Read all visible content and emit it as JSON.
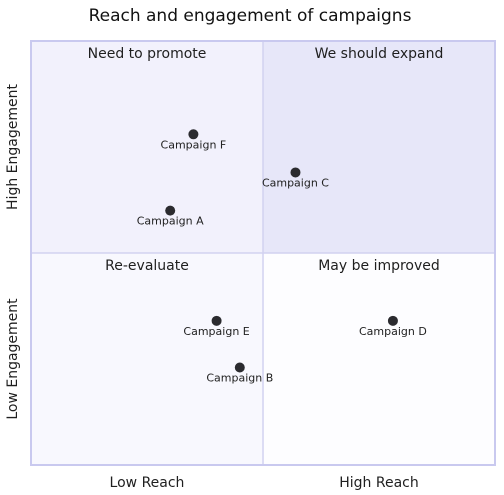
{
  "chart_data": {
    "type": "scatter",
    "chart_subtype": "quadrant",
    "title": "Reach and engagement of campaigns",
    "x_axis": {
      "low_label": "Low Reach",
      "high_label": "High Reach",
      "range": [
        0,
        1
      ]
    },
    "y_axis": {
      "low_label": "Low Engagement",
      "high_label": "High Engagement",
      "range": [
        0,
        1
      ]
    },
    "quadrants": {
      "top_left": {
        "label": "Need to promote",
        "color": "#f2f1fc"
      },
      "top_right": {
        "label": "We should expand",
        "color": "#e7e7f9"
      },
      "bottom_left": {
        "label": "Re-evaluate",
        "color": "#f8f8fe"
      },
      "bottom_right": {
        "label": "May be improved",
        "color": "#fdfdff"
      }
    },
    "points": [
      {
        "label": "Campaign A",
        "x": 0.3,
        "y": 0.6
      },
      {
        "label": "Campaign B",
        "x": 0.45,
        "y": 0.23
      },
      {
        "label": "Campaign C",
        "x": 0.57,
        "y": 0.69
      },
      {
        "label": "Campaign D",
        "x": 0.78,
        "y": 0.34
      },
      {
        "label": "Campaign E",
        "x": 0.4,
        "y": 0.34
      },
      {
        "label": "Campaign F",
        "x": 0.35,
        "y": 0.78
      }
    ],
    "grid": false,
    "legend": "none",
    "colors": {
      "point": "#2b2b2f",
      "border": "#c9c9ef",
      "divider": "#d2d2f0"
    }
  }
}
